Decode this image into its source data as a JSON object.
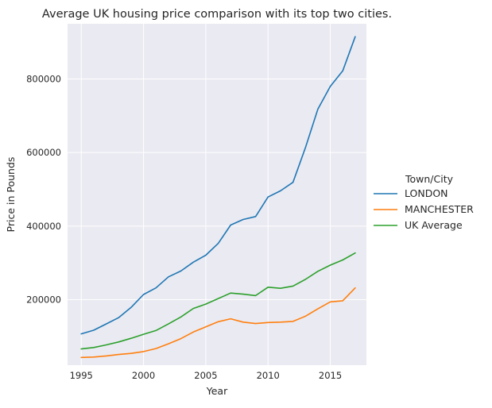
{
  "chart_data": {
    "type": "line",
    "title": "Average UK housing price comparison with its top two cities.",
    "xlabel": "Year",
    "ylabel": "Price in Pounds",
    "legend_title": "Town/City",
    "legend_position": "right",
    "grid": true,
    "x": [
      1995,
      1996,
      1997,
      1998,
      1999,
      2000,
      2001,
      2002,
      2003,
      2004,
      2005,
      2006,
      2007,
      2008,
      2009,
      2010,
      2011,
      2012,
      2013,
      2014,
      2015,
      2016,
      2017
    ],
    "xlim": [
      1993.9,
      2017.9
    ],
    "ylim": [
      22000,
      950000
    ],
    "xticks": [
      1995,
      2000,
      2005,
      2010,
      2015
    ],
    "yticks": [
      200000,
      400000,
      600000,
      800000
    ],
    "series": [
      {
        "name": "LONDON",
        "color": "#1f77b4",
        "values": [
          107000,
          117000,
          134000,
          151000,
          179000,
          214000,
          232000,
          262000,
          278000,
          302000,
          321000,
          353000,
          403000,
          418000,
          426000,
          479000,
          496000,
          519000,
          613000,
          718000,
          780000,
          822000,
          915000
        ]
      },
      {
        "name": "MANCHESTER",
        "color": "#ff7f0e",
        "values": [
          43000,
          44000,
          47000,
          51000,
          54000,
          59000,
          67000,
          80000,
          94000,
          112000,
          126000,
          140000,
          148000,
          139000,
          135000,
          138000,
          139000,
          141000,
          155000,
          175000,
          194000,
          197000,
          232000
        ]
      },
      {
        "name": "UK Average",
        "color": "#2ca02c",
        "values": [
          66000,
          70000,
          77000,
          85000,
          95000,
          106000,
          116000,
          134000,
          153000,
          176000,
          188000,
          203000,
          218000,
          215000,
          211000,
          234000,
          231000,
          237000,
          255000,
          277000,
          294000,
          308000,
          327000
        ]
      }
    ]
  }
}
